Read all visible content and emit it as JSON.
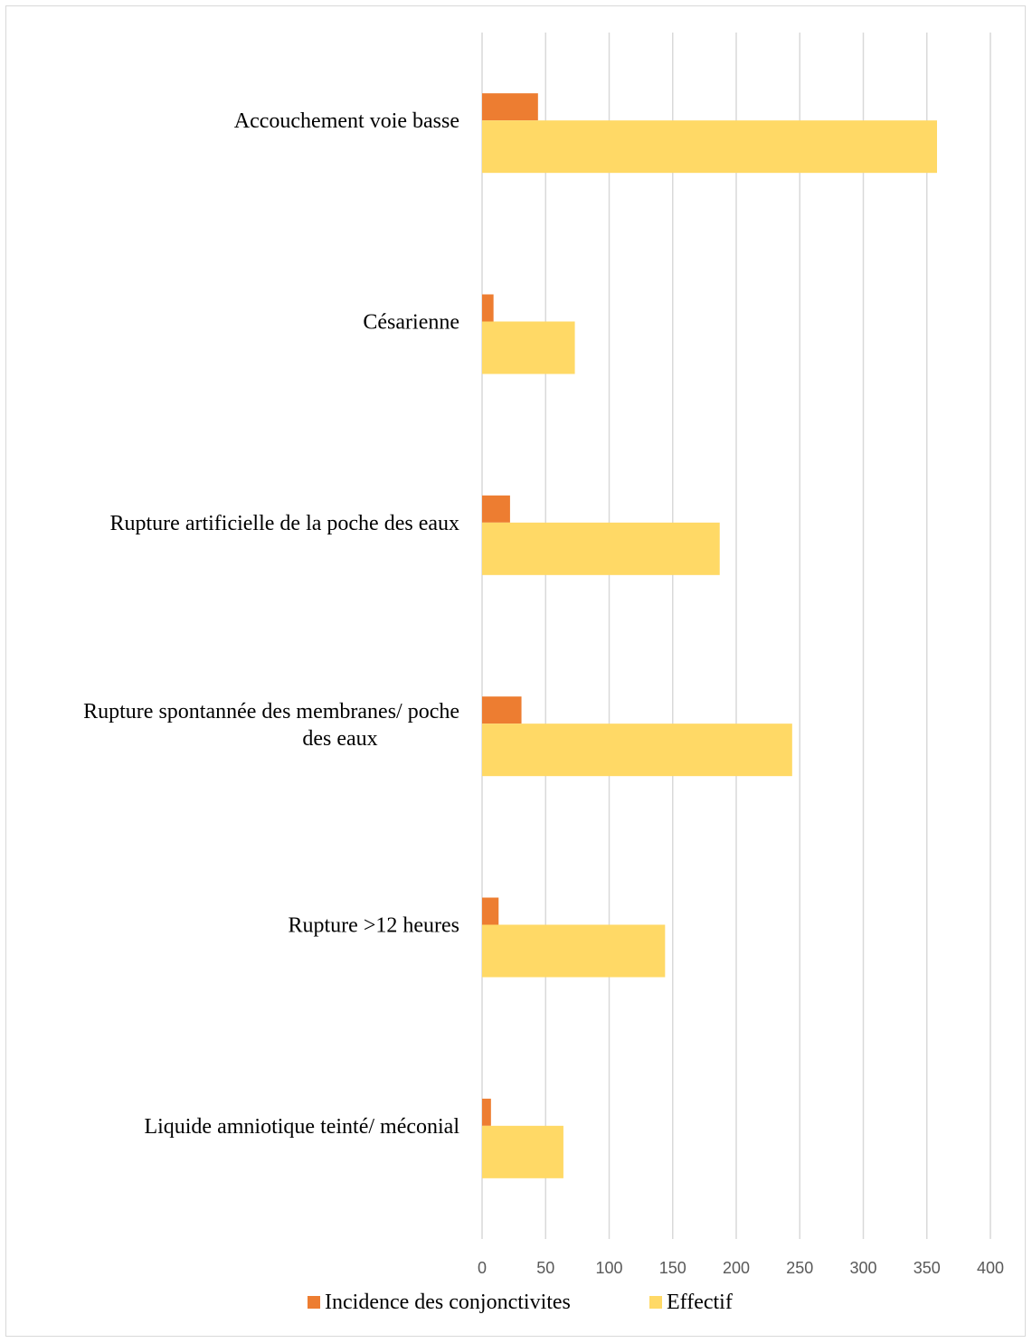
{
  "chart_data": {
    "type": "bar",
    "orientation": "horizontal",
    "categories": [
      "Accouchement voie basse",
      "Césarienne",
      "Rupture artificielle de la poche des eaux",
      "Rupture spontannée des membranes/ poche des eaux",
      "Rupture >12 heures",
      "Liquide amniotique teinté/ méconial"
    ],
    "series": [
      {
        "name": "Incidence des conjonctivites",
        "color": "#ED7D31",
        "values": [
          44,
          9,
          22,
          31,
          13,
          7
        ]
      },
      {
        "name": "Effectif",
        "color": "#FFD966",
        "values": [
          358,
          73,
          187,
          244,
          144,
          64
        ]
      }
    ],
    "xlim": [
      0,
      400
    ],
    "xticks": [
      0,
      50,
      100,
      150,
      200,
      250,
      300,
      350,
      400
    ],
    "grid": "vertical",
    "legend": "bottom",
    "title": "",
    "xlabel": "",
    "ylabel": ""
  }
}
